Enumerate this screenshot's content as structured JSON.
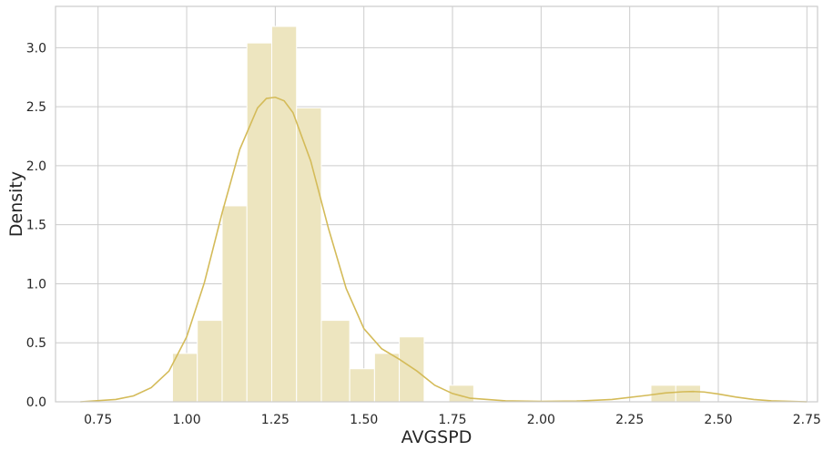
{
  "chart_data": {
    "type": "bar",
    "subtype": "histogram with kde",
    "xlabel": "AVGSPD",
    "ylabel": "Density",
    "xlim": [
      0.63,
      2.78
    ],
    "ylim": [
      0.0,
      3.35
    ],
    "xticks": [
      0.75,
      1.0,
      1.25,
      1.5,
      1.75,
      2.0,
      2.25,
      2.5,
      2.75
    ],
    "xtick_labels": [
      "0.75",
      "1.00",
      "1.25",
      "1.50",
      "1.75",
      "2.00",
      "2.25",
      "2.50",
      "2.75"
    ],
    "yticks": [
      0.0,
      0.5,
      1.0,
      1.5,
      2.0,
      2.5,
      3.0
    ],
    "ytick_labels": [
      "0.0",
      "0.5",
      "1.0",
      "1.5",
      "2.0",
      "2.5",
      "3.0"
    ],
    "grid": true,
    "colors": {
      "bar": "#ede5bf",
      "bar_edge": "#ffffff",
      "kde": "#d4bb59",
      "grid": "#cccccc",
      "frame": "#cccccc"
    },
    "bins": [
      {
        "x0": 0.96,
        "x1": 1.03,
        "density": 0.41
      },
      {
        "x0": 1.03,
        "x1": 1.1,
        "density": 0.69
      },
      {
        "x0": 1.1,
        "x1": 1.17,
        "density": 1.66
      },
      {
        "x0": 1.17,
        "x1": 1.24,
        "density": 3.04
      },
      {
        "x0": 1.24,
        "x1": 1.31,
        "density": 3.18
      },
      {
        "x0": 1.31,
        "x1": 1.38,
        "density": 2.49
      },
      {
        "x0": 1.38,
        "x1": 1.46,
        "density": 0.69
      },
      {
        "x0": 1.46,
        "x1": 1.53,
        "density": 0.28
      },
      {
        "x0": 1.53,
        "x1": 1.6,
        "density": 0.41
      },
      {
        "x0": 1.6,
        "x1": 1.67,
        "density": 0.55
      },
      {
        "x0": 1.67,
        "x1": 1.74,
        "density": 0.0
      },
      {
        "x0": 1.74,
        "x1": 1.81,
        "density": 0.14
      },
      {
        "x0": 1.81,
        "x1": 1.88,
        "density": 0.0
      },
      {
        "x0": 1.88,
        "x1": 1.95,
        "density": 0.0
      },
      {
        "x0": 1.95,
        "x1": 2.03,
        "density": 0.0
      },
      {
        "x0": 2.03,
        "x1": 2.1,
        "density": 0.0
      },
      {
        "x0": 2.1,
        "x1": 2.17,
        "density": 0.0
      },
      {
        "x0": 2.17,
        "x1": 2.24,
        "density": 0.0
      },
      {
        "x0": 2.24,
        "x1": 2.31,
        "density": 0.0
      },
      {
        "x0": 2.31,
        "x1": 2.38,
        "density": 0.14
      },
      {
        "x0": 2.38,
        "x1": 2.45,
        "density": 0.14
      }
    ],
    "kde": {
      "x": [
        0.7,
        0.8,
        0.85,
        0.9,
        0.95,
        1.0,
        1.05,
        1.1,
        1.15,
        1.2,
        1.225,
        1.25,
        1.275,
        1.3,
        1.35,
        1.4,
        1.45,
        1.5,
        1.55,
        1.6,
        1.65,
        1.7,
        1.75,
        1.8,
        1.9,
        2.0,
        2.1,
        2.2,
        2.3,
        2.35,
        2.4,
        2.43,
        2.46,
        2.5,
        2.55,
        2.6,
        2.65,
        2.75
      ],
      "y": [
        0.0,
        0.02,
        0.05,
        0.12,
        0.26,
        0.55,
        1.01,
        1.6,
        2.14,
        2.49,
        2.57,
        2.58,
        2.55,
        2.45,
        2.04,
        1.47,
        0.96,
        0.62,
        0.45,
        0.36,
        0.26,
        0.14,
        0.07,
        0.03,
        0.008,
        0.003,
        0.006,
        0.02,
        0.055,
        0.075,
        0.085,
        0.087,
        0.083,
        0.066,
        0.04,
        0.02,
        0.008,
        0.0
      ]
    }
  }
}
